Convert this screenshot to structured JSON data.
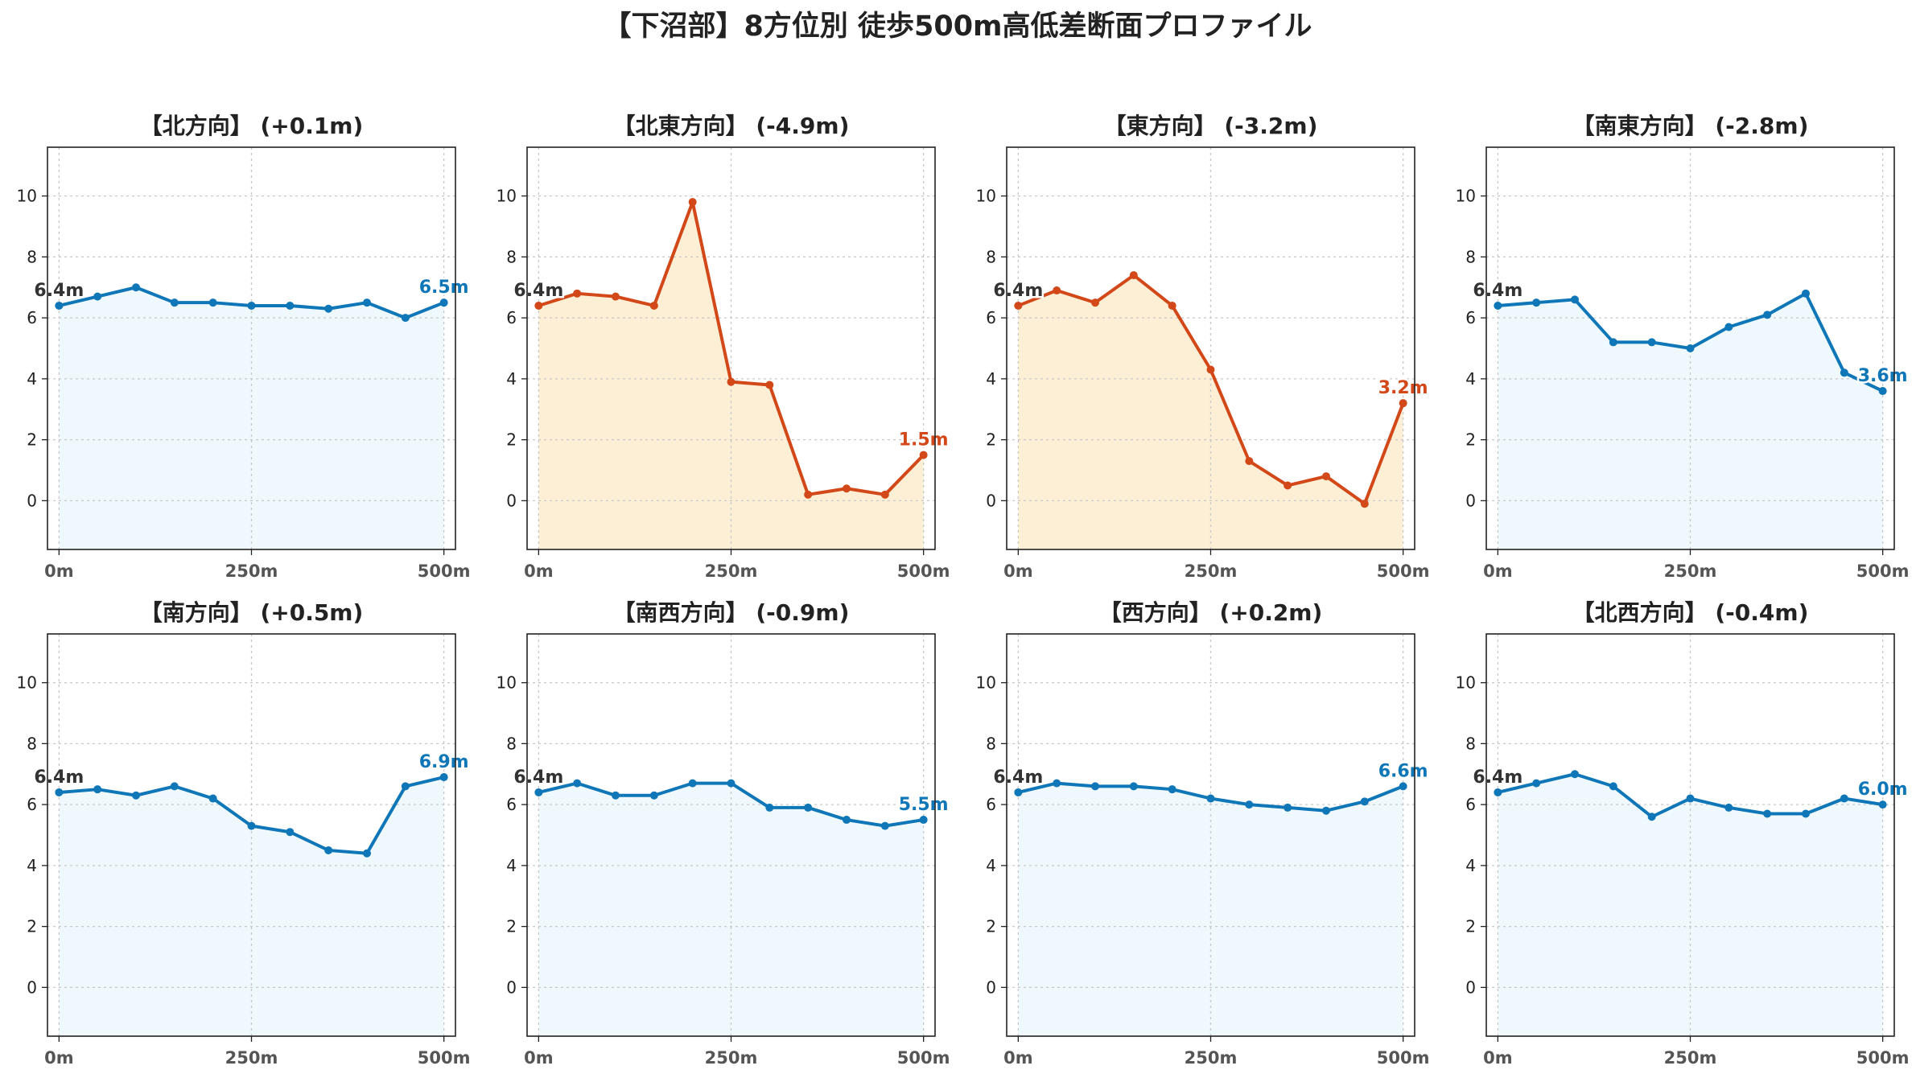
{
  "title": "【下沼部】8方位別 徒歩500m高低差断面プロファイル",
  "colors": {
    "up_line": "#0f77b8",
    "up_fill": "#eef8fd",
    "down_line": "#d24818",
    "down_fill": "#fdefd5",
    "start_label": "#333333",
    "grid": "#c8c8c8"
  },
  "chart_data": [
    {
      "type": "area",
      "title": "【北方向】 (+0.1m)",
      "trend": "up",
      "x": [
        0,
        50,
        100,
        150,
        200,
        250,
        300,
        350,
        400,
        450,
        500
      ],
      "y": [
        6.4,
        6.7,
        7.0,
        6.5,
        6.5,
        6.4,
        6.4,
        6.3,
        6.5,
        6.0,
        6.5
      ],
      "start_label": "6.4m",
      "end_label": "6.5m",
      "xticks": [
        "0m",
        "250m",
        "500m"
      ],
      "yticks": [
        "0",
        "2",
        "4",
        "6",
        "8",
        "10"
      ],
      "ylim": [
        -1.6,
        11.6
      ],
      "xlim": [
        -15,
        515
      ],
      "grid": true
    },
    {
      "type": "area",
      "title": "【北東方向】 (-4.9m)",
      "trend": "down",
      "x": [
        0,
        50,
        100,
        150,
        200,
        250,
        300,
        350,
        400,
        450,
        500
      ],
      "y": [
        6.4,
        6.8,
        6.7,
        6.4,
        9.8,
        3.9,
        3.8,
        0.2,
        0.4,
        0.2,
        1.5
      ],
      "start_label": "6.4m",
      "end_label": "1.5m",
      "xticks": [
        "0m",
        "250m",
        "500m"
      ],
      "yticks": [
        "0",
        "2",
        "4",
        "6",
        "8",
        "10"
      ],
      "ylim": [
        -1.6,
        11.6
      ],
      "xlim": [
        -15,
        515
      ],
      "grid": true
    },
    {
      "type": "area",
      "title": "【東方向】 (-3.2m)",
      "trend": "down",
      "x": [
        0,
        50,
        100,
        150,
        200,
        250,
        300,
        350,
        400,
        450,
        500
      ],
      "y": [
        6.4,
        6.9,
        6.5,
        7.4,
        6.4,
        4.3,
        1.3,
        0.5,
        0.8,
        -0.1,
        3.2
      ],
      "start_label": "6.4m",
      "end_label": "3.2m",
      "xticks": [
        "0m",
        "250m",
        "500m"
      ],
      "yticks": [
        "0",
        "2",
        "4",
        "6",
        "8",
        "10"
      ],
      "ylim": [
        -1.6,
        11.6
      ],
      "xlim": [
        -15,
        515
      ],
      "grid": true
    },
    {
      "type": "area",
      "title": "【南東方向】 (-2.8m)",
      "trend": "up",
      "x": [
        0,
        50,
        100,
        150,
        200,
        250,
        300,
        350,
        400,
        450,
        500
      ],
      "y": [
        6.4,
        6.5,
        6.6,
        5.2,
        5.2,
        5.0,
        5.7,
        6.1,
        6.8,
        4.2,
        3.6
      ],
      "start_label": "6.4m",
      "end_label": "3.6m",
      "xticks": [
        "0m",
        "250m",
        "500m"
      ],
      "yticks": [
        "0",
        "2",
        "4",
        "6",
        "8",
        "10"
      ],
      "ylim": [
        -1.6,
        11.6
      ],
      "xlim": [
        -15,
        515
      ],
      "grid": true
    },
    {
      "type": "area",
      "title": "【南方向】 (+0.5m)",
      "trend": "up",
      "x": [
        0,
        50,
        100,
        150,
        200,
        250,
        300,
        350,
        400,
        450,
        500
      ],
      "y": [
        6.4,
        6.5,
        6.3,
        6.6,
        6.2,
        5.3,
        5.1,
        4.5,
        4.4,
        6.6,
        6.9
      ],
      "start_label": "6.4m",
      "end_label": "6.9m",
      "xticks": [
        "0m",
        "250m",
        "500m"
      ],
      "yticks": [
        "0",
        "2",
        "4",
        "6",
        "8",
        "10"
      ],
      "ylim": [
        -1.6,
        11.6
      ],
      "xlim": [
        -15,
        515
      ],
      "grid": true
    },
    {
      "type": "area",
      "title": "【南西方向】 (-0.9m)",
      "trend": "up",
      "x": [
        0,
        50,
        100,
        150,
        200,
        250,
        300,
        350,
        400,
        450,
        500
      ],
      "y": [
        6.4,
        6.7,
        6.3,
        6.3,
        6.7,
        6.7,
        5.9,
        5.9,
        5.5,
        5.3,
        5.5
      ],
      "start_label": "6.4m",
      "end_label": "5.5m",
      "xticks": [
        "0m",
        "250m",
        "500m"
      ],
      "yticks": [
        "0",
        "2",
        "4",
        "6",
        "8",
        "10"
      ],
      "ylim": [
        -1.6,
        11.6
      ],
      "xlim": [
        -15,
        515
      ],
      "grid": true
    },
    {
      "type": "area",
      "title": "【西方向】 (+0.2m)",
      "trend": "up",
      "x": [
        0,
        50,
        100,
        150,
        200,
        250,
        300,
        350,
        400,
        450,
        500
      ],
      "y": [
        6.4,
        6.7,
        6.6,
        6.6,
        6.5,
        6.2,
        6.0,
        5.9,
        5.8,
        6.1,
        6.6
      ],
      "start_label": "6.4m",
      "end_label": "6.6m",
      "xticks": [
        "0m",
        "250m",
        "500m"
      ],
      "yticks": [
        "0",
        "2",
        "4",
        "6",
        "8",
        "10"
      ],
      "ylim": [
        -1.6,
        11.6
      ],
      "xlim": [
        -15,
        515
      ],
      "grid": true
    },
    {
      "type": "area",
      "title": "【北西方向】 (-0.4m)",
      "trend": "up",
      "x": [
        0,
        50,
        100,
        150,
        200,
        250,
        300,
        350,
        400,
        450,
        500
      ],
      "y": [
        6.4,
        6.7,
        7.0,
        6.6,
        5.6,
        6.2,
        5.9,
        5.7,
        5.7,
        6.2,
        6.0
      ],
      "start_label": "6.4m",
      "end_label": "6.0m",
      "xticks": [
        "0m",
        "250m",
        "500m"
      ],
      "yticks": [
        "0",
        "2",
        "4",
        "6",
        "8",
        "10"
      ],
      "ylim": [
        -1.6,
        11.6
      ],
      "xlim": [
        -15,
        515
      ],
      "grid": true
    }
  ]
}
